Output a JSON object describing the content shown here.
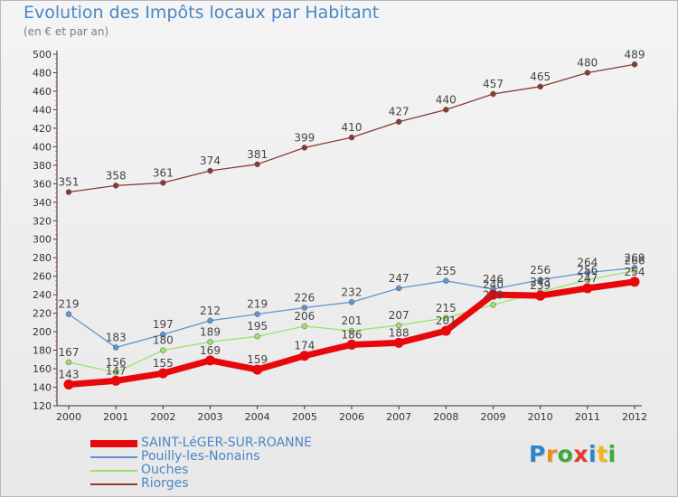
{
  "title": "Evolution des Impôts locaux par Habitant",
  "subtitle": "(en € et par an)",
  "logo": {
    "text": "Proxiti",
    "colors": [
      "#2e86c9",
      "#ef8a1f",
      "#3cab3a",
      "#e23b2e",
      "#2e86c9",
      "#f2b51d",
      "#3cab3a"
    ]
  },
  "chart_data": {
    "type": "line",
    "x": [
      "2000",
      "2001",
      "2002",
      "2003",
      "2004",
      "2005",
      "2006",
      "2007",
      "2008",
      "2009",
      "2010",
      "2011",
      "2012"
    ],
    "ylim": [
      120,
      500
    ],
    "yticks": [
      120,
      140,
      160,
      180,
      200,
      220,
      240,
      260,
      280,
      300,
      320,
      340,
      360,
      380,
      400,
      420,
      440,
      460,
      480,
      500
    ],
    "grid": false,
    "legend_position": "bottom-left",
    "series": [
      {
        "name": "SAINT-LéGER-SUR-ROANNE",
        "color": "#e8070b",
        "values": [
          143,
          147,
          155,
          169,
          159,
          174,
          186,
          188,
          201,
          240,
          239,
          247,
          254
        ],
        "labels": [
          "143",
          "147",
          "155",
          "169",
          "159",
          "174",
          "186",
          "188",
          "201",
          "240",
          "239",
          "247",
          "254"
        ]
      },
      {
        "name": "Pouilly-les-Nonains",
        "color": "#5e95d0",
        "values": [
          219,
          183,
          197,
          212,
          219,
          226,
          232,
          247,
          255,
          246,
          256,
          264,
          269
        ],
        "labels": [
          "219",
          "183",
          "197",
          "212",
          "219",
          "226",
          "232",
          "247",
          "255",
          "246",
          "256",
          "264",
          "269"
        ]
      },
      {
        "name": "Ouches",
        "color": "#9be36b",
        "values": [
          167,
          156,
          180,
          189,
          195,
          206,
          201,
          207,
          215,
          229,
          243,
          256,
          266
        ],
        "labels": [
          "167",
          "156",
          "180",
          "189",
          "195",
          "206",
          "201",
          "207",
          "215",
          "229",
          "243",
          "256",
          "266"
        ]
      },
      {
        "name": "Riorges",
        "color": "#8a3a35",
        "values": [
          351,
          358,
          361,
          374,
          381,
          399,
          410,
          427,
          440,
          457,
          465,
          480,
          489
        ],
        "labels": [
          "351",
          "358",
          "361",
          "374",
          "381",
          "399",
          "410",
          "427",
          "440",
          "457",
          "465",
          "480",
          "489"
        ]
      }
    ]
  }
}
